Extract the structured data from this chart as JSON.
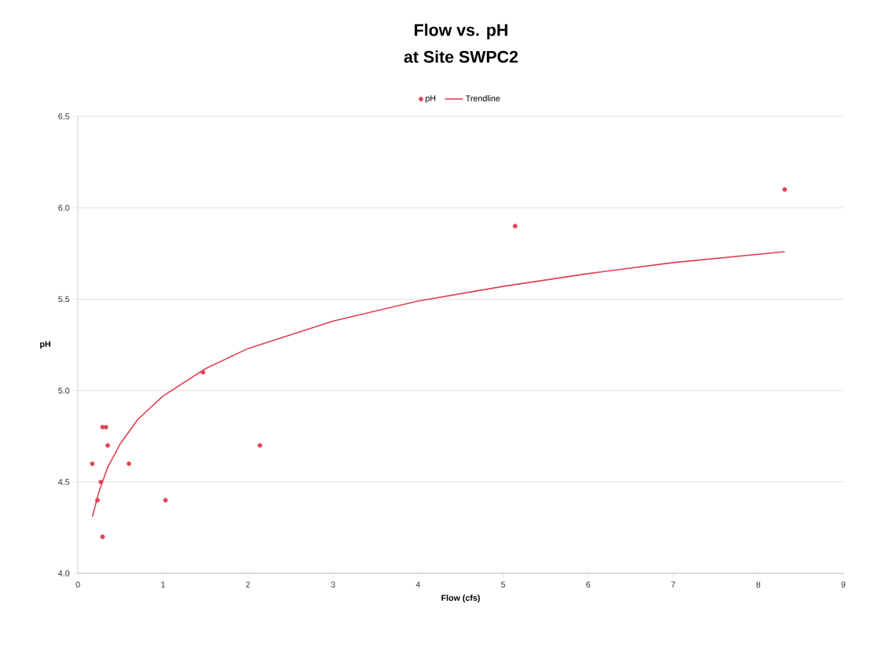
{
  "chart_data": {
    "type": "scatter",
    "title": "Flow vs. pH",
    "subtitle": "at Site SWPC2",
    "xlabel": "Flow (cfs)",
    "ylabel": "pH",
    "series": [
      {
        "name": "pH",
        "marker": "circle",
        "color": "#e0455a",
        "x": [
          0.17,
          0.23,
          0.27,
          0.29,
          0.29,
          0.33,
          0.35,
          0.6,
          1.03,
          1.47,
          2.14,
          5.14,
          8.31
        ],
        "values": [
          4.6,
          4.4,
          4.5,
          4.2,
          4.8,
          4.8,
          4.7,
          4.6,
          4.4,
          5.1,
          4.7,
          5.9,
          6.1
        ]
      },
      {
        "name": "Trendline",
        "type": "line",
        "marker": "none",
        "color": "#e04050",
        "x": [
          0.17,
          0.25,
          0.35,
          0.5,
          0.7,
          1,
          1.5,
          2,
          3,
          4,
          5,
          6,
          7,
          8.31
        ],
        "values": [
          4.31,
          4.45,
          4.58,
          4.71,
          4.84,
          4.97,
          5.12,
          5.23,
          5.38,
          5.49,
          5.57,
          5.64,
          5.7,
          5.76
        ]
      }
    ],
    "xlim": [
      0,
      9
    ],
    "xticks": [
      0,
      1,
      2,
      3,
      4,
      5,
      6,
      7,
      8,
      9
    ],
    "ylim": [
      4.0,
      6.5
    ],
    "yticks": [
      {
        "value": 4.0,
        "label": "4.0"
      },
      {
        "value": 4.5,
        "label": "4.5"
      },
      {
        "value": 5.0,
        "label": "5.0"
      },
      {
        "value": 5.5,
        "label": "5.5"
      },
      {
        "value": 6.0,
        "label": "6.0"
      },
      {
        "value": 6.5,
        "label": "6.5"
      }
    ],
    "grid": "y",
    "legend": "top"
  }
}
